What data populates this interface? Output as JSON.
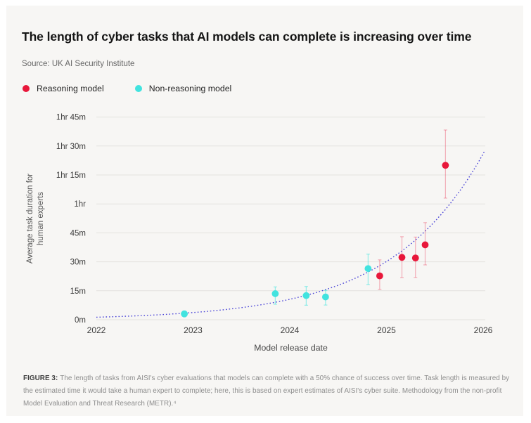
{
  "page": {
    "title": "The length of cyber tasks that AI models can complete is increasing over time",
    "source": "Source: UK AI Security Institute"
  },
  "legend": [
    {
      "label": "Reasoning model",
      "color": "#e8173a"
    },
    {
      "label": "Non-reasoning model",
      "color": "#41e3df"
    }
  ],
  "caption": {
    "label": "FIGURE 3:",
    "text": "The length of tasks from AISI's cyber evaluations that models can complete with a 50% chance of success over time. Task length is measured by the estimated time it would take a human expert to complete; here, this is based on expert estimates of AISI's cyber suite. Methodology from the non-profit Model Evaluation and Threat Research (METR).⁴"
  },
  "chart_data": {
    "type": "scatter",
    "title": "The length of cyber tasks that AI models can complete is increasing over time",
    "xlabel": "Model release date",
    "ylabel": "Average task duration for human experts",
    "ylabel_lines": [
      "Average task duration for",
      "human experts"
    ],
    "xlim": [
      2022,
      2026
    ],
    "ylim_minutes": [
      0,
      105
    ],
    "grid": "horizontal",
    "x_ticks": [
      2022,
      2023,
      2024,
      2025,
      2026
    ],
    "y_ticks": [
      {
        "minutes": 0,
        "label": "0m"
      },
      {
        "minutes": 15,
        "label": "15m"
      },
      {
        "minutes": 30,
        "label": "30m"
      },
      {
        "minutes": 45,
        "label": "45m"
      },
      {
        "minutes": 60,
        "label": "1hr"
      },
      {
        "minutes": 75,
        "label": "1hr 15m"
      },
      {
        "minutes": 90,
        "label": "1hr 30m"
      },
      {
        "minutes": 105,
        "label": "1hr 45m"
      }
    ],
    "series": [
      {
        "name": "Non-reasoning model",
        "color": "#41e3df",
        "errorbar_color": "rgba(65,227,223,0.55)",
        "points": [
          {
            "year": 2022.91,
            "minutes": 3.0,
            "err_low": 1.8,
            "err_high": 4.6
          },
          {
            "year": 2023.85,
            "minutes": 13.5,
            "err_low": 8.0,
            "err_high": 17.0
          },
          {
            "year": 2024.17,
            "minutes": 12.5,
            "err_low": 7.5,
            "err_high": 17.2
          },
          {
            "year": 2024.37,
            "minutes": 11.8,
            "err_low": 7.6,
            "err_high": 15.2
          },
          {
            "year": 2024.81,
            "minutes": 26.5,
            "err_low": 18.2,
            "err_high": 34.0
          }
        ]
      },
      {
        "name": "Reasoning model",
        "color": "#e8173a",
        "errorbar_color": "rgba(232,23,58,0.32)",
        "points": [
          {
            "year": 2024.93,
            "minutes": 22.7,
            "err_low": 15.7,
            "err_high": 31.0
          },
          {
            "year": 2025.16,
            "minutes": 32.3,
            "err_low": 21.8,
            "err_high": 43.0
          },
          {
            "year": 2025.3,
            "minutes": 32.0,
            "err_low": 21.9,
            "err_high": 42.8
          },
          {
            "year": 2025.4,
            "minutes": 38.8,
            "err_low": 28.4,
            "err_high": 50.3
          },
          {
            "year": 2025.61,
            "minutes": 80.0,
            "err_low": 63.0,
            "err_high": 98.3
          }
        ]
      }
    ],
    "trend": {
      "type": "exponential",
      "start_year": 2022.0,
      "end_year": 2026.02,
      "v0_minutes": 1.3,
      "growth_per_year": 1.048,
      "color": "#4a44d7",
      "style": "dotted"
    },
    "gridline_color": "#e3e1de"
  }
}
